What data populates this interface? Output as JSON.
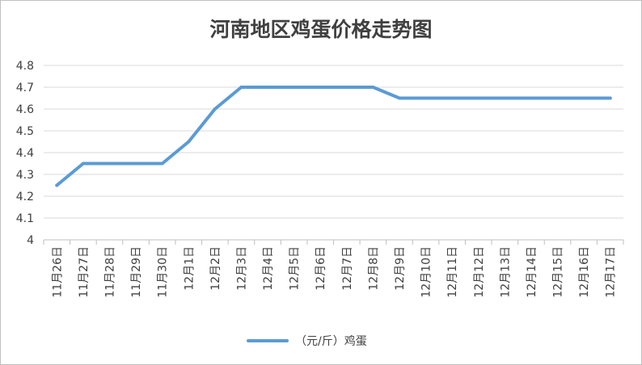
{
  "chart_data": {
    "type": "line",
    "title": "河南地区鸡蛋价格走势图",
    "xlabel": "",
    "ylabel": "",
    "categories": [
      "11月26日",
      "11月27日",
      "11月28日",
      "11月29日",
      "11月30日",
      "12月1日",
      "12月2日",
      "12月3日",
      "12月4日",
      "12月5日",
      "12月6日",
      "12月7日",
      "12月8日",
      "12月9日",
      "12月10日",
      "12月11日",
      "12月12日",
      "12月13日",
      "12月14日",
      "12月15日",
      "12月16日",
      "12月17日"
    ],
    "series": [
      {
        "name": "（元/斤）鸡蛋",
        "values": [
          4.25,
          4.35,
          4.35,
          4.35,
          4.35,
          4.45,
          4.6,
          4.7,
          4.7,
          4.7,
          4.7,
          4.7,
          4.7,
          4.65,
          4.65,
          4.65,
          4.65,
          4.65,
          4.65,
          4.65,
          4.65,
          4.65
        ],
        "color": "#5b9bd5"
      }
    ],
    "ylim": [
      4,
      4.8
    ],
    "yticks": [
      "4",
      "4.1",
      "4.2",
      "4.3",
      "4.4",
      "4.5",
      "4.6",
      "4.7",
      "4.8"
    ],
    "grid": true,
    "legend_position": "bottom"
  }
}
